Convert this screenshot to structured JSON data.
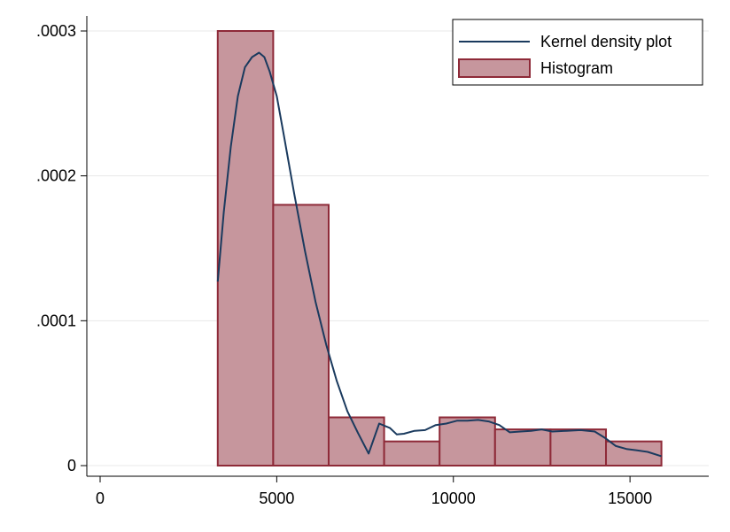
{
  "chart_data": {
    "type": "bar",
    "xlim": [
      0,
      16000
    ],
    "ylim": [
      0,
      0.0003
    ],
    "x_ticks": [
      {
        "value": 0,
        "label": "0"
      },
      {
        "value": 5000,
        "label": "5000"
      },
      {
        "value": 10000,
        "label": "10000"
      },
      {
        "value": 15000,
        "label": "15000"
      }
    ],
    "y_ticks": [
      {
        "value": 0,
        "label": "0"
      },
      {
        "value": 0.0001,
        "label": ".0001"
      },
      {
        "value": 0.0002,
        "label": ".0002"
      },
      {
        "value": 0.0003,
        "label": ".0003"
      }
    ],
    "grid": "horizontal",
    "legend_position": "top-right",
    "series": [
      {
        "name": "Histogram",
        "kind": "histogram",
        "color": "#c6969d",
        "edge_color": "#8e2a38",
        "bins": [
          {
            "x0": 3330,
            "x1": 4900,
            "value": 0.0003
          },
          {
            "x0": 4900,
            "x1": 6470,
            "value": 0.00018
          },
          {
            "x0": 6470,
            "x1": 8040,
            "value": 3.33e-05
          },
          {
            "x0": 8040,
            "x1": 9610,
            "value": 1.67e-05
          },
          {
            "x0": 9610,
            "x1": 11180,
            "value": 3.33e-05
          },
          {
            "x0": 11180,
            "x1": 12750,
            "value": 2.5e-05
          },
          {
            "x0": 12750,
            "x1": 14320,
            "value": 2.5e-05
          },
          {
            "x0": 14320,
            "x1": 15890,
            "value": 1.67e-05
          }
        ]
      },
      {
        "name": "Kernel density plot",
        "kind": "line",
        "color": "#1a3a5e",
        "points": [
          [
            3330,
            0.000127
          ],
          [
            3500,
            0.000175
          ],
          [
            3700,
            0.00022
          ],
          [
            3900,
            0.000255
          ],
          [
            4100,
            0.000275
          ],
          [
            4300,
            0.000282
          ],
          [
            4500,
            0.000285
          ],
          [
            4650,
            0.000282
          ],
          [
            4800,
            0.000272
          ],
          [
            5000,
            0.000255
          ],
          [
            5200,
            0.000228
          ],
          [
            5500,
            0.000187
          ],
          [
            5800,
            0.000148
          ],
          [
            6100,
            0.000113
          ],
          [
            6400,
            8.35e-05
          ],
          [
            6700,
            5.83e-05
          ],
          [
            7000,
            3.75e-05
          ],
          [
            7300,
            2.25e-05
          ],
          [
            7600,
            8.3e-06
          ],
          [
            7900,
            2.9e-05
          ],
          [
            8200,
            2.6e-05
          ],
          [
            8400,
            2.15e-05
          ],
          [
            8600,
            2.2e-05
          ],
          [
            8900,
            2.4e-05
          ],
          [
            9200,
            2.45e-05
          ],
          [
            9500,
            2.8e-05
          ],
          [
            9800,
            2.9e-05
          ],
          [
            10100,
            3.1e-05
          ],
          [
            10400,
            3.1e-05
          ],
          [
            10700,
            3.15e-05
          ],
          [
            11000,
            3.05e-05
          ],
          [
            11300,
            2.8e-05
          ],
          [
            11600,
            2.3e-05
          ],
          [
            11900,
            2.35e-05
          ],
          [
            12200,
            2.4e-05
          ],
          [
            12500,
            2.5e-05
          ],
          [
            12800,
            2.35e-05
          ],
          [
            13200,
            2.4e-05
          ],
          [
            13600,
            2.45e-05
          ],
          [
            14000,
            2.35e-05
          ],
          [
            14300,
            1.9e-05
          ],
          [
            14600,
            1.35e-05
          ],
          [
            14900,
            1.15e-05
          ],
          [
            15200,
            1.05e-05
          ],
          [
            15500,
            9.5e-06
          ],
          [
            15890,
            6.5e-06
          ]
        ]
      }
    ]
  }
}
